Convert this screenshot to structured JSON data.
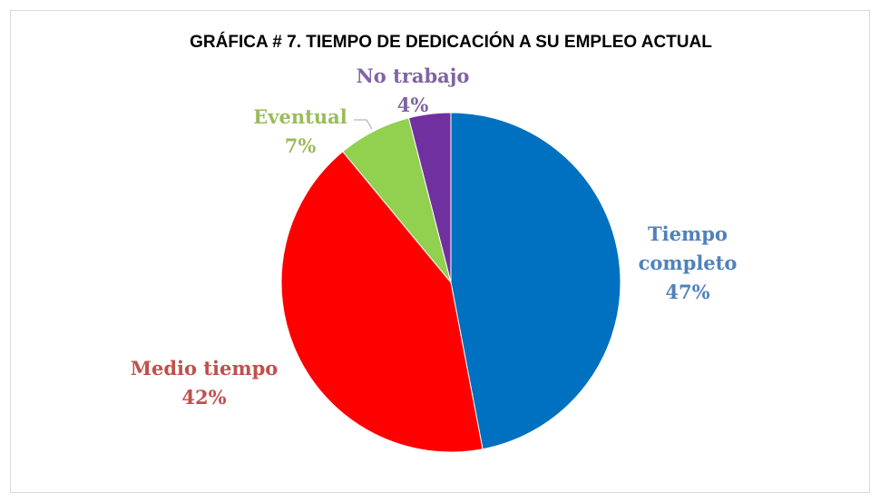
{
  "chart_data": {
    "type": "pie",
    "title": "GRÁFICA # 7. TIEMPO DE DEDICACIÓN A SU EMPLEO ACTUAL",
    "categories": [
      "Tiempo completo",
      "Medio tiempo",
      "Eventual",
      "No trabajo"
    ],
    "values": [
      47,
      42,
      7,
      4
    ],
    "value_labels": [
      "47%",
      "42%",
      "7%",
      "4%"
    ],
    "colors": [
      "#0070c0",
      "#ff0000",
      "#92d050",
      "#7030a0"
    ],
    "label_colors": [
      "#4f81bd",
      "#c0504d",
      "#9bbb59",
      "#8064a2"
    ]
  }
}
